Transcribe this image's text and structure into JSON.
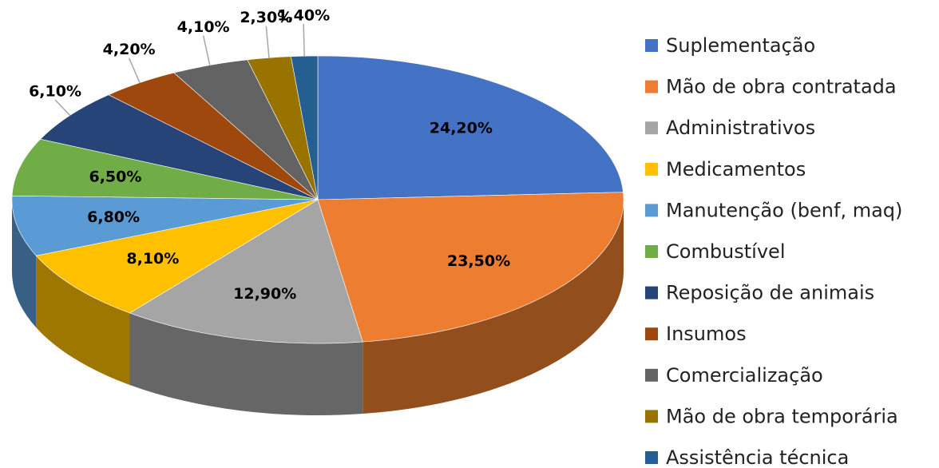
{
  "chart_data": {
    "type": "pie",
    "categories": [
      "Suplementação",
      "Mão de obra contratada",
      "Administrativos",
      "Medicamentos",
      "Manutenção (benf, maq)",
      "Combustível",
      "Reposição de animais",
      "Insumos",
      "Comercialização",
      "Mão de obra temporária",
      "Assistência técnica"
    ],
    "values": [
      24.2,
      23.5,
      12.9,
      8.1,
      6.8,
      6.5,
      6.1,
      4.2,
      4.1,
      2.3,
      1.4
    ],
    "value_labels": [
      "24,20%",
      "23,50%",
      "12,90%",
      "8,10%",
      "6,80%",
      "6,50%",
      "6,10%",
      "4,20%",
      "4,10%",
      "2,30%",
      "1,40%"
    ],
    "colors": [
      "#4472c4",
      "#ed7d31",
      "#a5a5a5",
      "#ffc000",
      "#5b9bd5",
      "#70ad47",
      "#264478",
      "#9e480e",
      "#636363",
      "#997300",
      "#255e91"
    ],
    "legend": "right"
  }
}
